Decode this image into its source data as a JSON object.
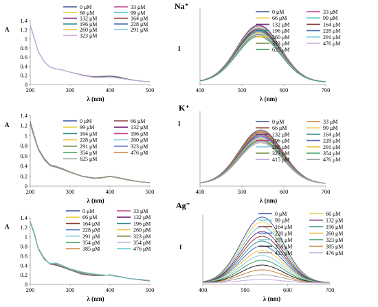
{
  "sections": [
    {
      "ion": "Na⁺"
    },
    {
      "ion": "K⁺"
    },
    {
      "ion": "Ag⁺"
    }
  ],
  "chart_data": [
    {
      "type": "line",
      "ion": "Na⁺",
      "kind": "absorbance",
      "xlabel": "λ (nm)",
      "ylabel": "A",
      "xlim": [
        200,
        500
      ],
      "ylim": [
        0,
        1.4
      ],
      "xticks": [
        200,
        300,
        400,
        500
      ],
      "yticks": [
        0,
        0.2,
        0.4,
        0.6,
        0.8,
        1,
        1.2,
        1.4
      ],
      "ytick_labels": [
        "0",
        "0.2",
        "0.4",
        "0.6",
        "0.8",
        "1",
        "1.2",
        "1.4"
      ],
      "legend_placement": "top-right",
      "series": [
        {
          "name": "0 μM",
          "color": "#3b4fa0"
        },
        {
          "name": "33 μM",
          "color": "#c2408c"
        },
        {
          "name": "66 μM",
          "color": "#e8d34a"
        },
        {
          "name": "99 μM",
          "color": "#5bc6d6"
        },
        {
          "name": "132 μM",
          "color": "#7a2e7d"
        },
        {
          "name": "164 μM",
          "color": "#8c3a3a"
        },
        {
          "name": "196 μM",
          "color": "#2f8f8a"
        },
        {
          "name": "228 μM",
          "color": "#4a6fc4"
        },
        {
          "name": "260 μM",
          "color": "#f0c040"
        },
        {
          "name": "291 μM",
          "color": "#80cfe0"
        },
        {
          "name": "323 μM",
          "color": "#c8a8e0"
        }
      ],
      "x": [
        200,
        210,
        220,
        235,
        250,
        265,
        280,
        300,
        330,
        360,
        380,
        400,
        420,
        450,
        480,
        500
      ],
      "y_first": [
        1.3,
        1.02,
        0.72,
        0.5,
        0.38,
        0.34,
        0.32,
        0.27,
        0.21,
        0.17,
        0.18,
        0.19,
        0.17,
        0.11,
        0.07,
        0.06
      ],
      "y_last": [
        1.3,
        1.02,
        0.72,
        0.5,
        0.38,
        0.34,
        0.32,
        0.27,
        0.2,
        0.15,
        0.15,
        0.16,
        0.14,
        0.1,
        0.07,
        0.06
      ]
    },
    {
      "type": "line",
      "ion": "Na⁺",
      "kind": "emission",
      "xlabel": "λ (nm)",
      "ylabel": "I",
      "xlim": [
        400,
        700
      ],
      "ylim": [
        0,
        1
      ],
      "xticks": [
        400,
        500,
        600,
        700
      ],
      "yticks": [],
      "ytick_labels": [],
      "legend_placement": "top-right",
      "peak": 540,
      "width": 52,
      "base": 0.03,
      "amp_first": 0.75,
      "amp_last": 0.6,
      "series": [
        {
          "name": "0 μM",
          "color": "#3b4fa0"
        },
        {
          "name": "33 μM",
          "color": "#c2408c"
        },
        {
          "name": "66 μM",
          "color": "#e8d34a"
        },
        {
          "name": "99 μM",
          "color": "#5bc6d6"
        },
        {
          "name": "132 μM",
          "color": "#7a2e7d"
        },
        {
          "name": "164 μM",
          "color": "#8c3a3a"
        },
        {
          "name": "196 μM",
          "color": "#2f8f8a"
        },
        {
          "name": "228 μM",
          "color": "#4a6fc4"
        },
        {
          "name": "260 μM",
          "color": "#f0c040"
        },
        {
          "name": "291 μM",
          "color": "#80cfe0"
        },
        {
          "name": "323 μM",
          "color": "#6a8a3a"
        },
        {
          "name": "476 μM",
          "color": "#c8a8e0"
        },
        {
          "name": "625 μM",
          "color": "#3aa060"
        }
      ]
    },
    {
      "type": "line",
      "ion": "K⁺",
      "kind": "absorbance",
      "xlabel": "λ (nm)",
      "ylabel": "A",
      "xlim": [
        200,
        500
      ],
      "ylim": [
        0,
        1.4
      ],
      "xticks": [
        200,
        300,
        400,
        500
      ],
      "yticks": [
        0,
        0.2,
        0.4,
        0.6,
        0.8,
        1,
        1.2,
        1.4
      ],
      "ytick_labels": [
        "0",
        "0.2",
        "0.4",
        "0.6",
        "0.8",
        "1",
        "1.2",
        "1.4"
      ],
      "legend_placement": "top-right",
      "series": [
        {
          "name": "0 μM",
          "color": "#3b4fa0"
        },
        {
          "name": "66 μM",
          "color": "#8c3a3a"
        },
        {
          "name": "99 μM",
          "color": "#e8d34a"
        },
        {
          "name": "132 μM",
          "color": "#7a2e7d"
        },
        {
          "name": "164 μM",
          "color": "#2f8f8a"
        },
        {
          "name": "196 μM",
          "color": "#c2408c"
        },
        {
          "name": "228 μM",
          "color": "#f0c040"
        },
        {
          "name": "260 μM",
          "color": "#80cfe0"
        },
        {
          "name": "291 μM",
          "color": "#6a8a3a"
        },
        {
          "name": "323 μM",
          "color": "#4a6fc4"
        },
        {
          "name": "354 μM",
          "color": "#3aa060"
        },
        {
          "name": "476 μM",
          "color": "#d08030"
        },
        {
          "name": "625 μM",
          "color": "#a0a0a0"
        }
      ],
      "x": [
        200,
        210,
        220,
        235,
        250,
        265,
        280,
        300,
        330,
        360,
        380,
        400,
        420,
        450,
        480,
        500
      ],
      "y_first": [
        1.28,
        1.0,
        0.75,
        0.55,
        0.42,
        0.39,
        0.35,
        0.28,
        0.2,
        0.16,
        0.17,
        0.2,
        0.17,
        0.12,
        0.08,
        0.07
      ],
      "y_last": [
        1.22,
        0.96,
        0.72,
        0.52,
        0.4,
        0.37,
        0.33,
        0.27,
        0.19,
        0.15,
        0.16,
        0.19,
        0.16,
        0.11,
        0.08,
        0.07
      ]
    },
    {
      "type": "line",
      "ion": "K⁺",
      "kind": "emission",
      "xlabel": "λ (nm)",
      "ylabel": "I",
      "xlim": [
        400,
        700
      ],
      "ylim": [
        0,
        1
      ],
      "xticks": [
        400,
        500,
        600,
        700
      ],
      "yticks": [],
      "ytick_labels": [],
      "legend_placement": "top-right",
      "peak": 545,
      "width": 52,
      "base": 0.03,
      "amp_first": 0.72,
      "amp_last": 0.55,
      "series": [
        {
          "name": "0 μM",
          "color": "#3b4fa0"
        },
        {
          "name": "33 μM",
          "color": "#d08030"
        },
        {
          "name": "66 μM",
          "color": "#8c3a3a"
        },
        {
          "name": "99 μM",
          "color": "#e8d34a"
        },
        {
          "name": "132 μM",
          "color": "#7a2e7d"
        },
        {
          "name": "164 μM",
          "color": "#2f8f8a"
        },
        {
          "name": "196 μM",
          "color": "#c2408c"
        },
        {
          "name": "228 μM",
          "color": "#4a6fc4"
        },
        {
          "name": "260 μM",
          "color": "#80cfe0"
        },
        {
          "name": "291 μM",
          "color": "#f0c040"
        },
        {
          "name": "323 μM",
          "color": "#6a8a3a"
        },
        {
          "name": "354 μM",
          "color": "#3aa060"
        },
        {
          "name": "415 μM",
          "color": "#c8a8e0"
        },
        {
          "name": "476 μM",
          "color": "#a0a0a0"
        }
      ]
    },
    {
      "type": "line",
      "ion": "Ag⁺",
      "kind": "absorbance",
      "xlabel": "λ (nm)",
      "ylabel": "A",
      "xlim": [
        200,
        500
      ],
      "ylim": [
        0,
        1.4
      ],
      "xticks": [
        200,
        300,
        400,
        500
      ],
      "yticks": [
        0,
        0.2,
        0.4,
        0.6,
        0.8,
        1,
        1.2,
        1.4
      ],
      "ytick_labels": [
        "0",
        "0.2",
        "0.4",
        "0.6",
        "0.8",
        "1",
        "1.2",
        "1.4"
      ],
      "legend_placement": "top-right",
      "series": [
        {
          "name": "0 μM",
          "color": "#3b4fa0"
        },
        {
          "name": "33 μM",
          "color": "#c2408c"
        },
        {
          "name": "66 μM",
          "color": "#e8d34a"
        },
        {
          "name": "132 μM",
          "color": "#7a2e7d"
        },
        {
          "name": "164 μM",
          "color": "#8c3a3a"
        },
        {
          "name": "196 μM",
          "color": "#2f8f8a"
        },
        {
          "name": "228 μM",
          "color": "#4a6fc4"
        },
        {
          "name": "260 μM",
          "color": "#f0c040"
        },
        {
          "name": "291 μM",
          "color": "#80cfe0"
        },
        {
          "name": "323 μM",
          "color": "#6a8a3a"
        },
        {
          "name": "354 μM",
          "color": "#3aa060"
        },
        {
          "name": "354 μM",
          "color": "#c8a8e0"
        },
        {
          "name": "385 μM",
          "color": "#d08030"
        },
        {
          "name": "476 μM",
          "color": "#5bc6d6"
        }
      ],
      "x": [
        200,
        210,
        220,
        235,
        250,
        265,
        280,
        300,
        330,
        360,
        380,
        400,
        420,
        450,
        480,
        500
      ],
      "y_first": [
        1.32,
        1.08,
        0.76,
        0.55,
        0.42,
        0.4,
        0.36,
        0.3,
        0.21,
        0.18,
        0.18,
        0.2,
        0.17,
        0.12,
        0.09,
        0.07
      ],
      "y_last": [
        1.3,
        1.05,
        0.74,
        0.52,
        0.44,
        0.45,
        0.4,
        0.33,
        0.26,
        0.22,
        0.2,
        0.19,
        0.16,
        0.12,
        0.1,
        0.08
      ]
    },
    {
      "type": "line",
      "ion": "Ag⁺",
      "kind": "emission",
      "xlabel": "λ (nm)",
      "ylabel": "I",
      "xlim": [
        400,
        700
      ],
      "ylim": [
        0,
        1
      ],
      "xticks": [
        400,
        500,
        600,
        700
      ],
      "yticks": [],
      "ytick_labels": [],
      "legend_placement": "top-right",
      "peak": 540,
      "width": 50,
      "base": 0.02,
      "amp_first": 0.95,
      "amp_last": 0.05,
      "series": [
        {
          "name": "0 μM",
          "color": "#3b4fa0"
        },
        {
          "name": "66 μM",
          "color": "#e8d34a"
        },
        {
          "name": "99 μM",
          "color": "#5bc6d6"
        },
        {
          "name": "132 μM",
          "color": "#7a2e7d"
        },
        {
          "name": "164 μM",
          "color": "#8c3a3a"
        },
        {
          "name": "196 μM",
          "color": "#2f8f8a"
        },
        {
          "name": "228 μM",
          "color": "#4a6fc4"
        },
        {
          "name": "260 μM",
          "color": "#f0c040"
        },
        {
          "name": "291 μM",
          "color": "#80cfe0"
        },
        {
          "name": "323 μM",
          "color": "#3aa060"
        },
        {
          "name": "354 μM",
          "color": "#222222"
        },
        {
          "name": "385 μM",
          "color": "#d08030"
        },
        {
          "name": "415 μM",
          "color": "#a0a0a0"
        },
        {
          "name": "476 μM",
          "color": "#c8a8e0"
        }
      ]
    }
  ]
}
